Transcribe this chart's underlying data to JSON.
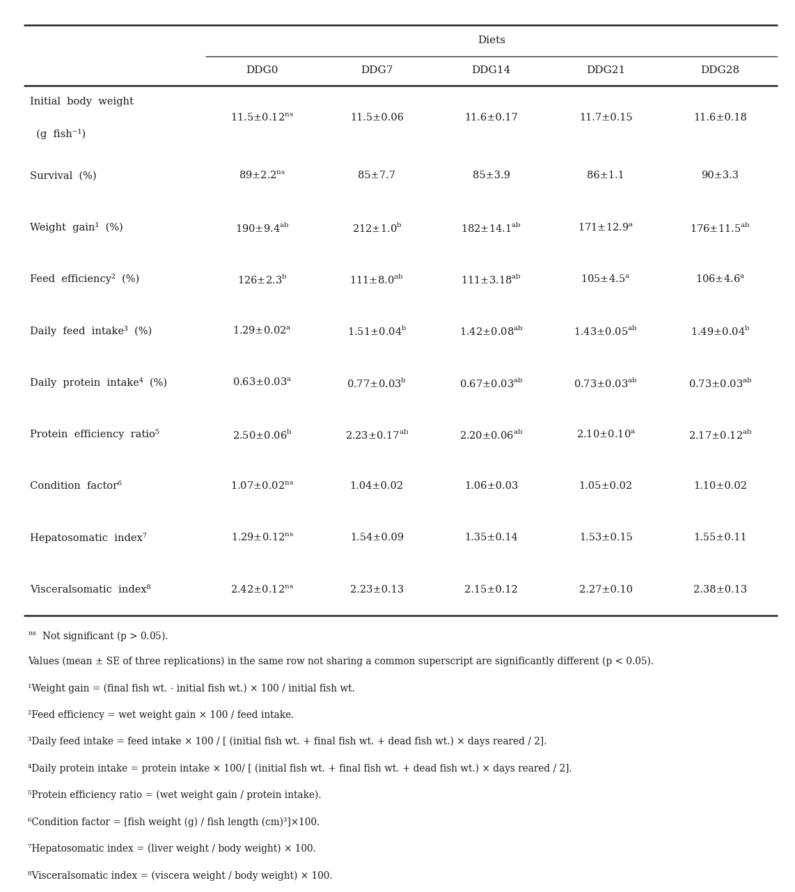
{
  "col_headers": [
    "DDG0",
    "DDG7",
    "DDG14",
    "DDG21",
    "DDG28"
  ],
  "row_labels": [
    [
      "Initial  body  weight",
      "  (g  fish⁻¹)"
    ],
    [
      "Survival  (%)"
    ],
    [
      "Weight  gain¹  (%)"
    ],
    [
      "Feed  efficiency²  (%)"
    ],
    [
      "Daily  feed  intake³  (%)"
    ],
    [
      "Daily  protein  intake⁴  (%)"
    ],
    [
      "Protein  efficiency  ratio⁵"
    ],
    [
      "Condition  factor⁶"
    ],
    [
      "Hepatosomatic  index⁷"
    ],
    [
      "Visceralsomatic  index⁸"
    ]
  ],
  "cell_main": [
    [
      "11.5±0.12",
      "11.5±0.06",
      "11.6±0.17",
      "11.7±0.15",
      "11.6±0.18"
    ],
    [
      "89±2.2",
      "85±7.7",
      "85±3.9",
      "86±1.1",
      "90±3.3"
    ],
    [
      "190±9.4",
      "212±1.0",
      "182±14.1",
      "171±12.9",
      "176±11.5"
    ],
    [
      "126±2.3",
      "111±8.0",
      "111±3.18",
      "105±4.5",
      "106±4.6"
    ],
    [
      "1.29±0.02",
      "1.51±0.04",
      "1.42±0.08",
      "1.43±0.05",
      "1.49±0.04"
    ],
    [
      "0.63±0.03",
      "0.77±0.03",
      "0.67±0.03",
      "0.73±0.03",
      "0.73±0.03"
    ],
    [
      "2.50±0.06",
      "2.23±0.17",
      "2.20±0.06",
      "2.10±0.10",
      "2.17±0.12"
    ],
    [
      "1.07±0.02",
      "1.04±0.02",
      "1.06±0.03",
      "1.05±0.02",
      "1.10±0.02"
    ],
    [
      "1.29±0.12",
      "1.54±0.09",
      "1.35±0.14",
      "1.53±0.15",
      "1.55±0.11"
    ],
    [
      "2.42±0.12",
      "2.23±0.13",
      "2.15±0.12",
      "2.27±0.10",
      "2.38±0.13"
    ]
  ],
  "cell_super": [
    [
      "ns",
      "",
      "",
      "",
      ""
    ],
    [
      "ns",
      "",
      "",
      "",
      ""
    ],
    [
      "ab",
      "b",
      "ab",
      "a",
      "ab"
    ],
    [
      "b",
      "ab",
      "ab",
      "a",
      "a"
    ],
    [
      "a",
      "b",
      "ab",
      "ab",
      "b"
    ],
    [
      "a",
      "b",
      "ab",
      "ab",
      "ab"
    ],
    [
      "b",
      "ab",
      "ab",
      "a",
      "ab"
    ],
    [
      "ns",
      "",
      "",
      "",
      ""
    ],
    [
      "ns",
      "",
      "",
      "",
      ""
    ],
    [
      "ns",
      "",
      "",
      "",
      ""
    ]
  ],
  "footnote_ns_super": "ns",
  "footnote_ns_text": "  Not significant (p > 0.05).",
  "footnote_values": "Values (mean ± SE of three replications) in the same row not sharing a common superscript are significantly different (p < 0.05).",
  "footnotes_numbered": [
    [
      "¹",
      "Weight gain = (final fish wt. - initial fish wt.) × 100 / initial fish wt."
    ],
    [
      "²",
      "Feed efficiency = wet weight gain × 100 / feed intake."
    ],
    [
      "³",
      "Daily feed intake = feed intake × 100 / [ (initial fish wt. + final fish wt. + dead fish wt.) × days reared / 2]."
    ],
    [
      "⁴",
      "Daily protein intake = protein intake × 100/ [ (initial fish wt. + final fish wt. + dead fish wt.) × days reared / 2]."
    ],
    [
      "⁵",
      "Protein efficiency ratio = (wet weight gain / protein intake)."
    ],
    [
      "⁶",
      "Condition factor = [fish weight (g) / fish length (cm)³]×100."
    ],
    [
      "⁷",
      "Hepatosomatic index = (liver weight / body weight) × 100."
    ],
    [
      "⁸",
      "Visceralsomatic index = (viscera weight / body weight) × 100."
    ]
  ],
  "bg_color": "#ffffff",
  "text_color": "#1a1a1a",
  "fs_header": 11.0,
  "fs_cell": 10.5,
  "fs_super": 7.5,
  "fs_foot": 9.8
}
